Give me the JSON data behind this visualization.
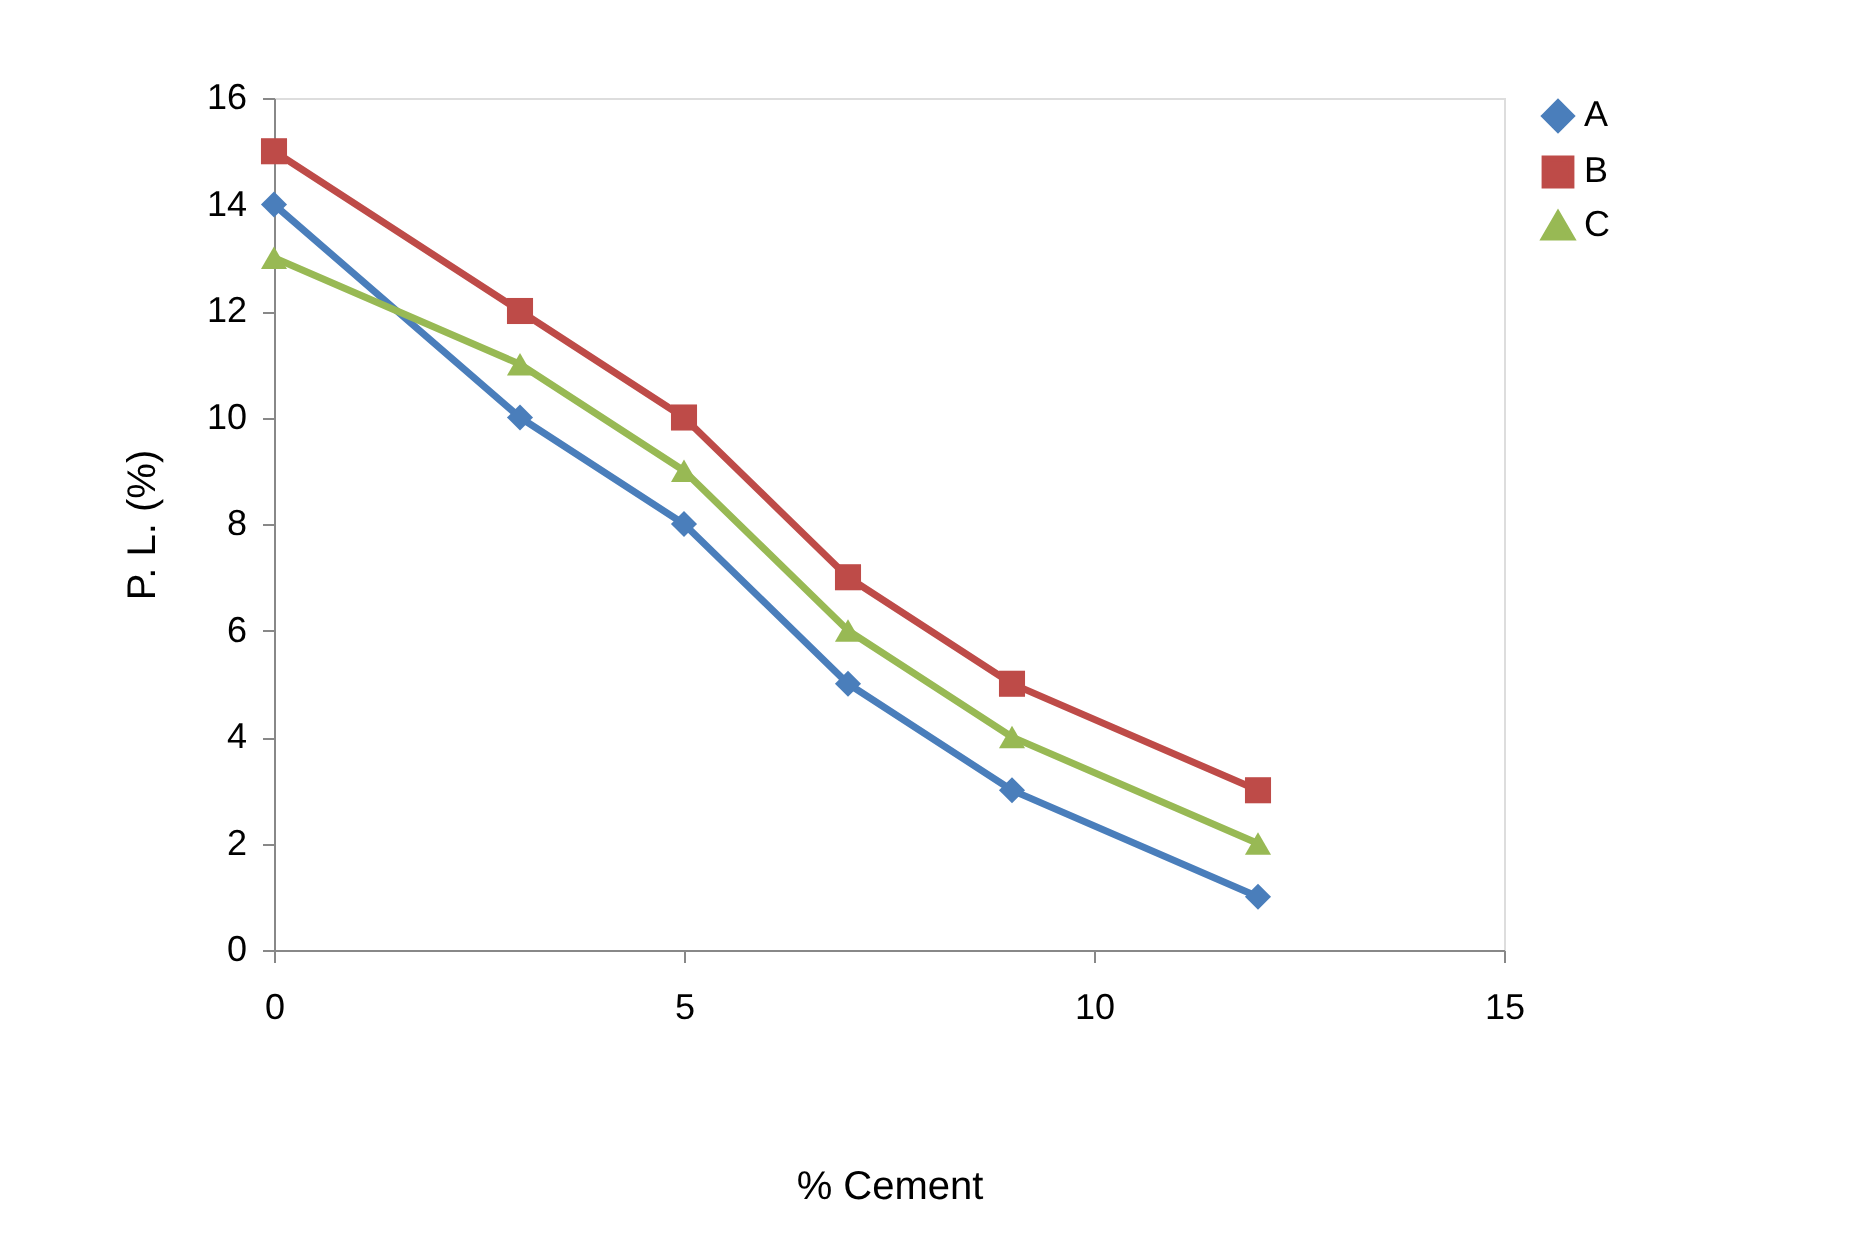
{
  "chart_data": {
    "type": "line",
    "xlabel": "% Cement",
    "ylabel": "P. L. (%)",
    "x": [
      0,
      3,
      5,
      7,
      9,
      12
    ],
    "series": [
      {
        "name": "A",
        "color": "#4a7ebb",
        "marker": "diamond",
        "values": [
          14,
          10,
          8,
          5,
          3,
          1
        ]
      },
      {
        "name": "B",
        "color": "#be4b48",
        "marker": "square",
        "values": [
          15,
          12,
          10,
          7,
          5,
          3
        ]
      },
      {
        "name": "C",
        "color": "#98b954",
        "marker": "triangle",
        "values": [
          13,
          11,
          9,
          6,
          4,
          2
        ]
      }
    ],
    "xlim": [
      0,
      15
    ],
    "xticks": [
      0,
      5,
      10,
      15
    ],
    "ylim": [
      0,
      16
    ],
    "yticks": [
      0,
      2,
      4,
      6,
      8,
      10,
      12,
      14,
      16
    ],
    "grid": false,
    "legend": "right",
    "line_style": "solid"
  }
}
